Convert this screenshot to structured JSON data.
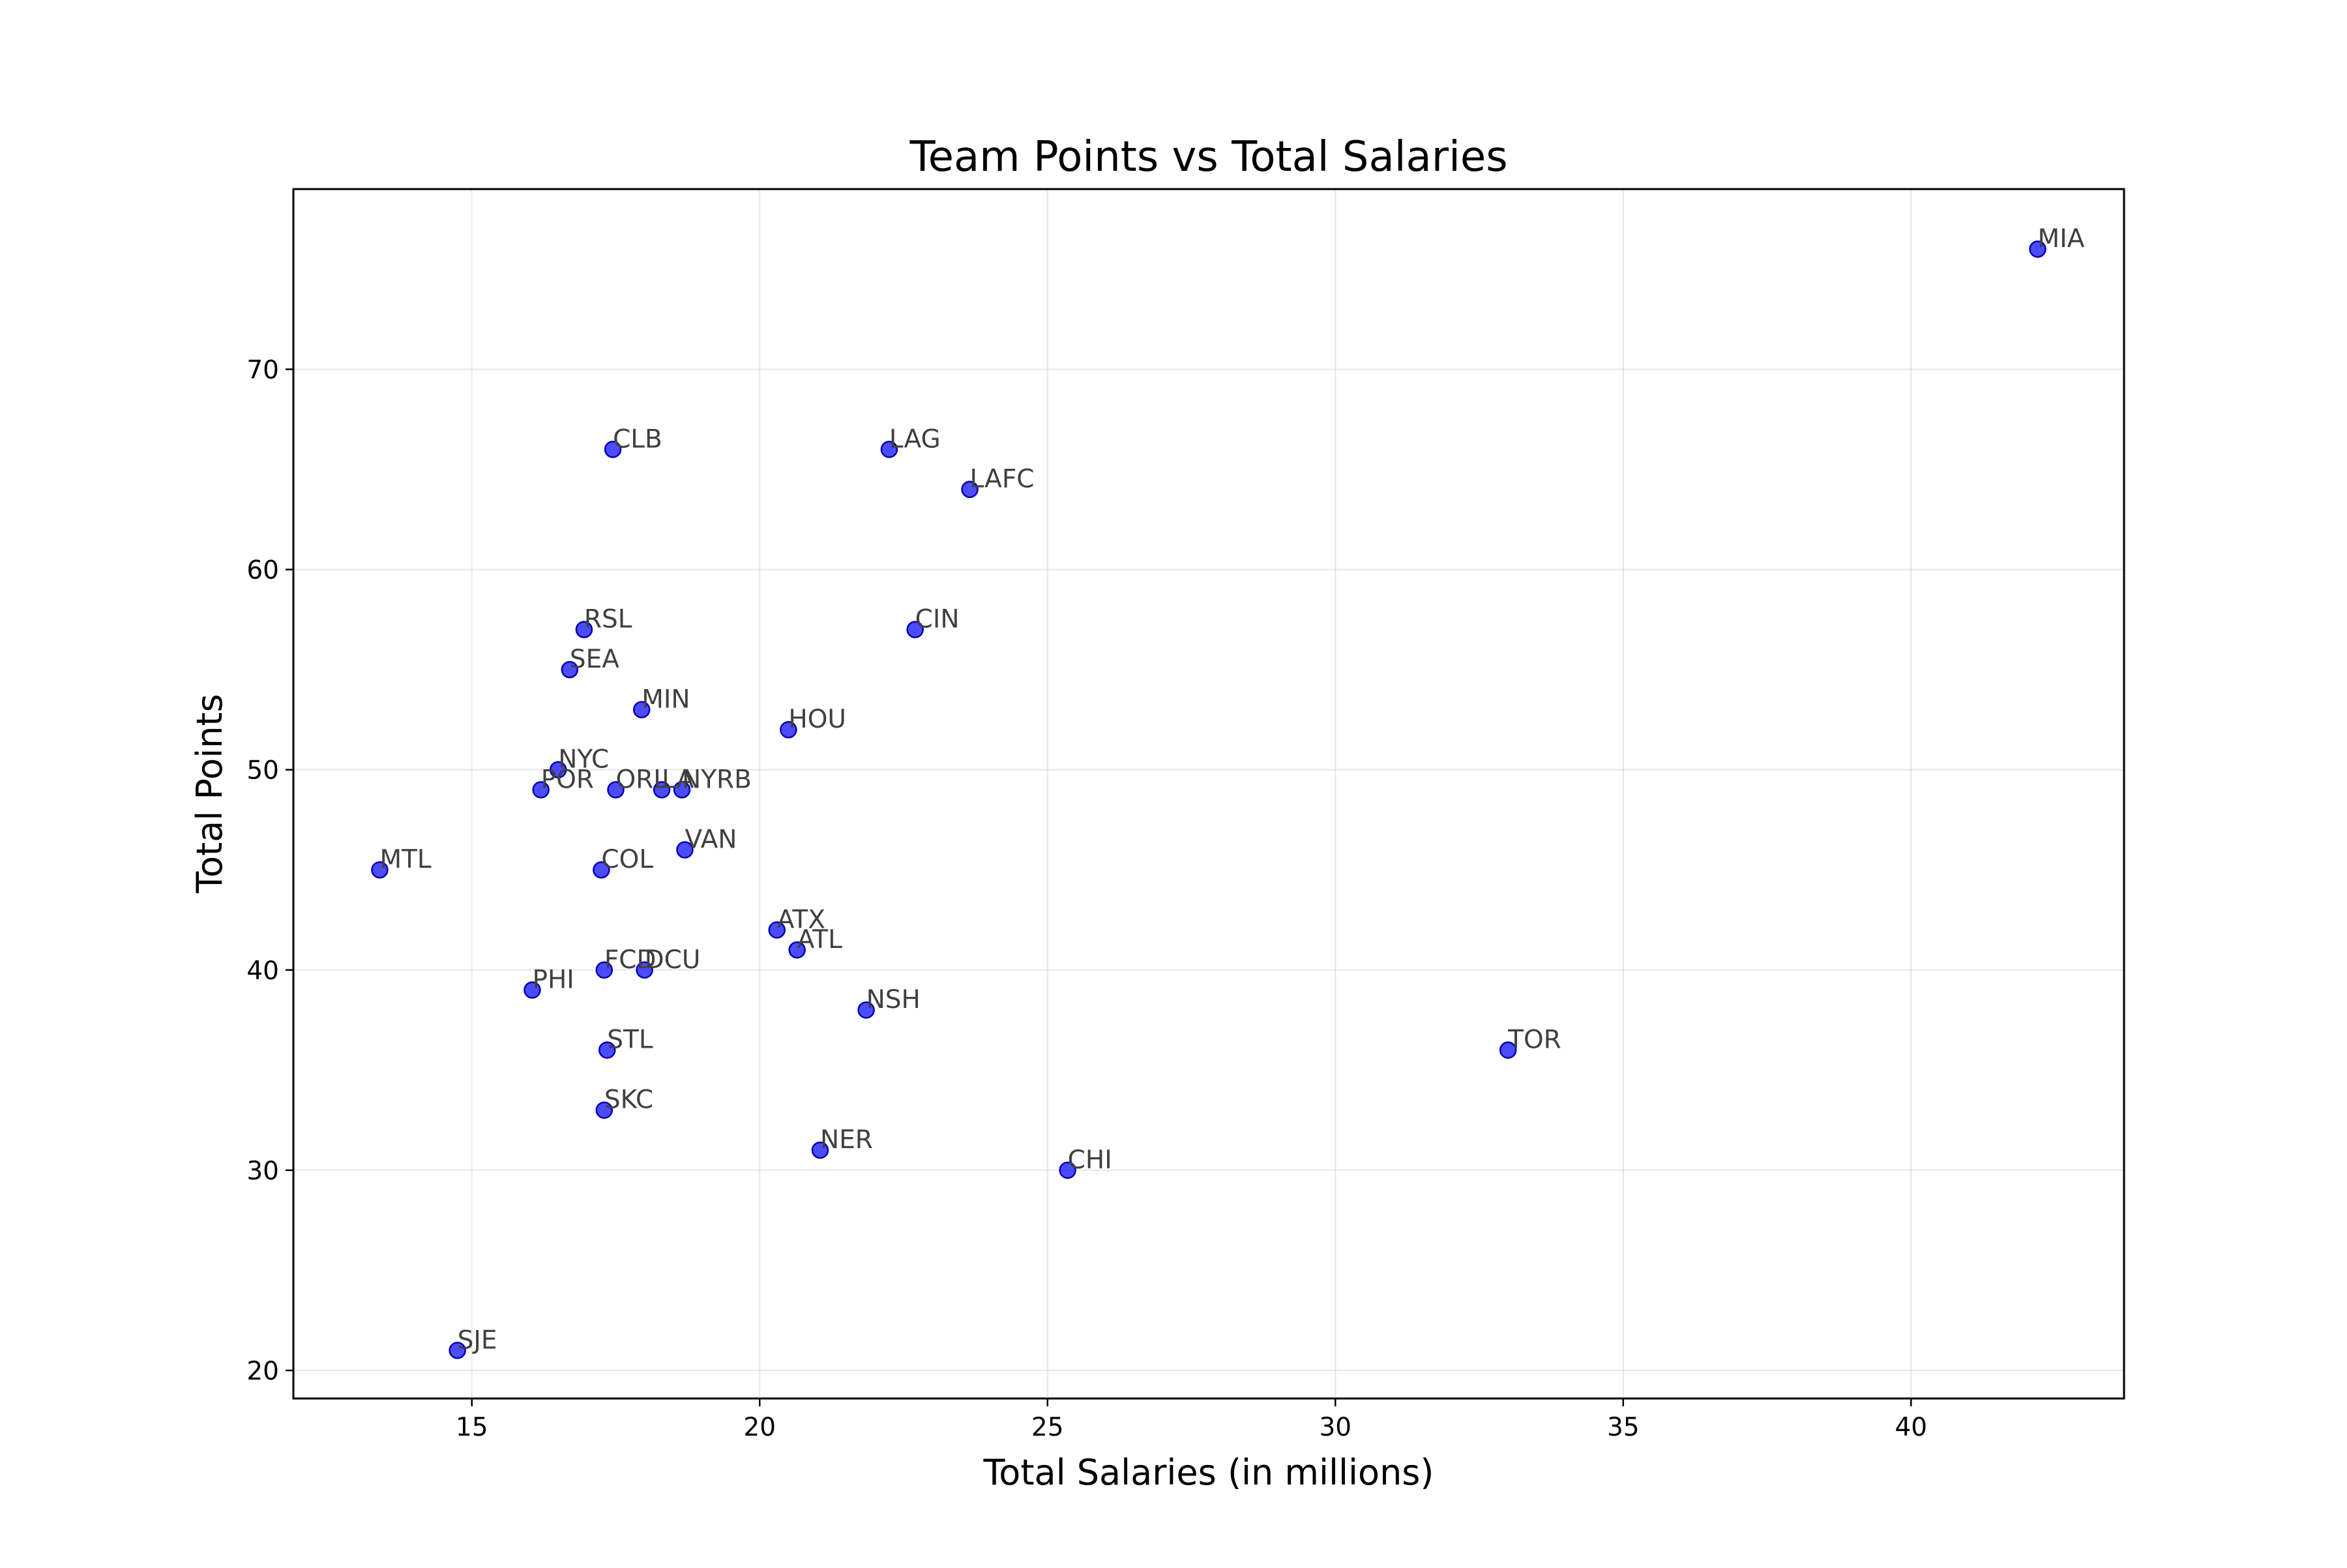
{
  "chart_data": {
    "type": "scatter",
    "title": "Team Points vs Total Salaries",
    "xlabel": "Total Salaries (in millions)",
    "ylabel": "Total Points",
    "xlim": [
      11.9,
      43.7
    ],
    "ylim": [
      18.6,
      79.0
    ],
    "xticks": [
      15,
      20,
      25,
      30,
      35,
      40
    ],
    "yticks": [
      20,
      30,
      40,
      50,
      60,
      70
    ],
    "grid": true,
    "marker_color": "#0000ff",
    "marker_alpha": 0.7,
    "label_color": "#404040",
    "points": [
      {
        "label": "MIA",
        "x": 42.2,
        "y": 76
      },
      {
        "label": "CLB",
        "x": 17.45,
        "y": 66
      },
      {
        "label": "LAG",
        "x": 22.25,
        "y": 66
      },
      {
        "label": "LAFC",
        "x": 23.65,
        "y": 64
      },
      {
        "label": "RSL",
        "x": 16.95,
        "y": 57
      },
      {
        "label": "CIN",
        "x": 22.7,
        "y": 57
      },
      {
        "label": "SEA",
        "x": 16.7,
        "y": 55
      },
      {
        "label": "MIN",
        "x": 17.95,
        "y": 53
      },
      {
        "label": "HOU",
        "x": 20.5,
        "y": 52
      },
      {
        "label": "NYC",
        "x": 16.5,
        "y": 50
      },
      {
        "label": "POR",
        "x": 16.2,
        "y": 49
      },
      {
        "label": "ORL",
        "x": 17.5,
        "y": 49
      },
      {
        "label": "LA",
        "x": 18.3,
        "y": 49
      },
      {
        "label": "NYRB",
        "x": 18.65,
        "y": 49
      },
      {
        "label": "VAN",
        "x": 18.7,
        "y": 46
      },
      {
        "label": "MTL",
        "x": 13.4,
        "y": 45
      },
      {
        "label": "COL",
        "x": 17.25,
        "y": 45
      },
      {
        "label": "ATX",
        "x": 20.3,
        "y": 42
      },
      {
        "label": "ATL",
        "x": 20.65,
        "y": 41
      },
      {
        "label": "FCD",
        "x": 17.3,
        "y": 40
      },
      {
        "label": "DCU",
        "x": 18.0,
        "y": 40
      },
      {
        "label": "PHI",
        "x": 16.05,
        "y": 39
      },
      {
        "label": "NSH",
        "x": 21.85,
        "y": 38
      },
      {
        "label": "STL",
        "x": 17.35,
        "y": 36
      },
      {
        "label": "TOR",
        "x": 33.0,
        "y": 36
      },
      {
        "label": "SKC",
        "x": 17.3,
        "y": 33
      },
      {
        "label": "NER",
        "x": 21.05,
        "y": 31
      },
      {
        "label": "CHI",
        "x": 25.35,
        "y": 30
      },
      {
        "label": "SJE",
        "x": 14.75,
        "y": 21
      }
    ]
  }
}
